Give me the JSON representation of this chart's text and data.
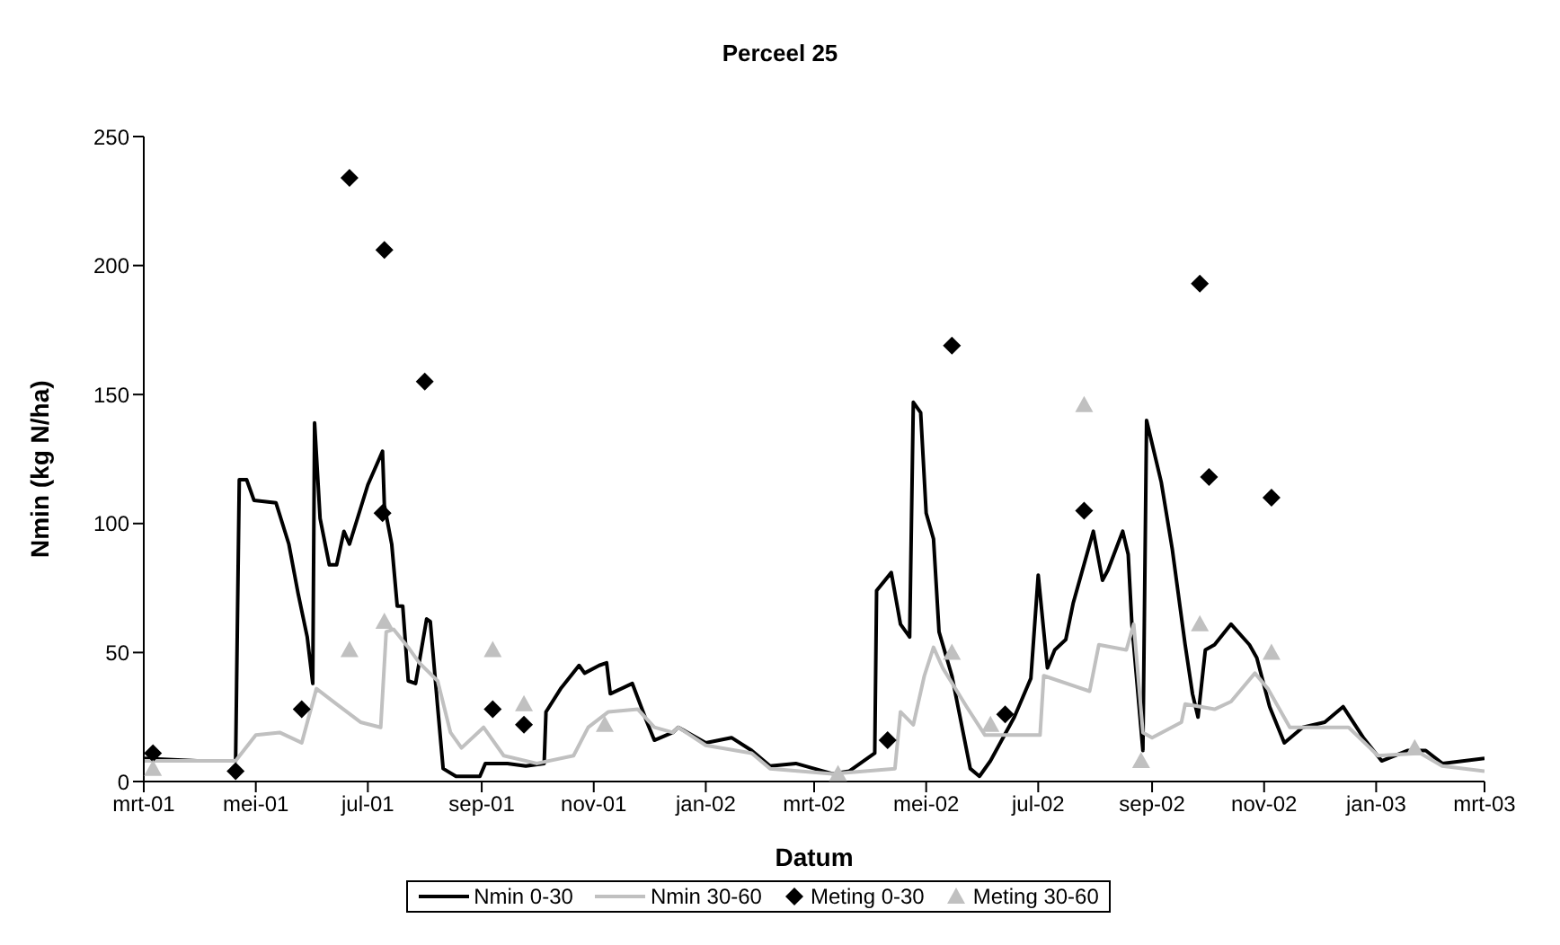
{
  "chart_data": {
    "type": "line",
    "title": "Perceel 25",
    "xlabel": "Datum",
    "ylabel": "Nmin (kg N/ha)",
    "xlim": [
      "2001-03-01",
      "2003-03-01"
    ],
    "xticks": [
      {
        "value": "2001-03-01",
        "label": "mrt-01"
      },
      {
        "value": "2001-05-01",
        "label": "mei-01"
      },
      {
        "value": "2001-07-01",
        "label": "jul-01"
      },
      {
        "value": "2001-09-01",
        "label": "sep-01"
      },
      {
        "value": "2001-11-01",
        "label": "nov-01"
      },
      {
        "value": "2002-01-01",
        "label": "jan-02"
      },
      {
        "value": "2002-03-01",
        "label": "mrt-02"
      },
      {
        "value": "2002-05-01",
        "label": "mei-02"
      },
      {
        "value": "2002-07-01",
        "label": "jul-02"
      },
      {
        "value": "2002-09-01",
        "label": "sep-02"
      },
      {
        "value": "2002-11-01",
        "label": "nov-02"
      },
      {
        "value": "2003-01-01",
        "label": "jan-03"
      },
      {
        "value": "2003-03-01",
        "label": "mrt-03"
      }
    ],
    "ylim": [
      0,
      250
    ],
    "yticks": [
      0,
      50,
      100,
      150,
      200,
      250
    ],
    "grid": false,
    "legend": "bottom",
    "series": [
      {
        "name": "Nmin 0-30",
        "color": "#000000",
        "marker": "none",
        "line_style": "solid",
        "x": [
          "2001-03-01",
          "2001-03-30",
          "2001-04-20",
          "2001-04-22",
          "2001-04-26",
          "2001-04-30",
          "2001-05-12",
          "2001-05-19",
          "2001-05-24",
          "2001-05-29",
          "2001-06-01",
          "2001-06-02",
          "2001-06-05",
          "2001-06-10",
          "2001-06-14",
          "2001-06-18",
          "2001-06-21",
          "2001-07-01",
          "2001-07-09",
          "2001-07-10",
          "2001-07-14",
          "2001-07-17",
          "2001-07-20",
          "2001-07-23",
          "2001-07-27",
          "2001-08-02",
          "2001-08-04",
          "2001-08-08",
          "2001-08-11",
          "2001-08-18",
          "2001-08-31",
          "2001-09-03",
          "2001-09-15",
          "2001-09-25",
          "2001-10-05",
          "2001-10-06",
          "2001-10-14",
          "2001-10-24",
          "2001-10-27",
          "2001-11-04",
          "2001-11-08",
          "2001-11-10",
          "2001-11-22",
          "2001-11-30",
          "2001-12-04",
          "2001-12-14",
          "2001-12-17",
          "2002-01-01",
          "2002-01-15",
          "2002-01-26",
          "2002-02-05",
          "2002-02-19",
          "2002-03-11",
          "2002-03-20",
          "2002-04-03",
          "2002-04-04",
          "2002-04-12",
          "2002-04-17",
          "2002-04-22",
          "2002-04-24",
          "2002-04-28",
          "2002-05-01",
          "2002-05-05",
          "2002-05-08",
          "2002-05-15",
          "2002-05-25",
          "2002-05-30",
          "2002-06-05",
          "2002-06-18",
          "2002-06-27",
          "2002-07-01",
          "2002-07-06",
          "2002-07-10",
          "2002-07-16",
          "2002-07-20",
          "2002-07-31",
          "2002-08-05",
          "2002-08-08",
          "2002-08-16",
          "2002-08-19",
          "2002-08-21",
          "2002-08-27",
          "2002-08-29",
          "2002-09-06",
          "2002-09-12",
          "2002-09-19",
          "2002-09-23",
          "2002-09-26",
          "2002-09-30",
          "2002-10-05",
          "2002-10-14",
          "2002-10-24",
          "2002-10-28",
          "2002-11-04",
          "2002-11-12",
          "2002-11-22",
          "2002-12-04",
          "2002-12-14",
          "2002-12-25",
          "2003-01-04",
          "2003-01-18",
          "2003-01-28",
          "2003-02-06",
          "2003-03-01"
        ],
        "values": [
          9,
          8,
          8,
          117,
          117,
          109,
          108,
          92,
          73,
          56,
          38,
          139,
          102,
          84,
          84,
          97,
          92,
          115,
          128,
          107,
          92,
          68,
          68,
          39,
          38,
          63,
          62,
          29,
          5,
          2,
          2,
          7,
          7,
          6,
          7,
          27,
          36,
          45,
          42,
          45,
          46,
          34,
          38,
          23,
          16,
          19,
          21,
          15,
          17,
          12,
          6,
          7,
          3,
          4,
          11,
          74,
          81,
          61,
          56,
          147,
          143,
          104,
          94,
          58,
          41,
          5,
          2,
          8,
          25,
          40,
          80,
          44,
          51,
          55,
          69,
          97,
          78,
          82,
          97,
          88,
          61,
          12,
          140,
          116,
          90,
          53,
          34,
          25,
          51,
          53,
          61,
          53,
          48,
          29,
          15,
          21,
          23,
          29,
          17,
          8,
          12,
          12,
          7,
          9
        ]
      },
      {
        "name": "Nmin 30-60",
        "color": "#c0c0c0",
        "marker": "none",
        "line_style": "solid",
        "x": [
          "2001-03-01",
          "2001-04-20",
          "2001-05-01",
          "2001-05-14",
          "2001-05-26",
          "2001-06-03",
          "2001-06-14",
          "2001-06-27",
          "2001-07-08",
          "2001-07-11",
          "2001-07-15",
          "2001-07-23",
          "2001-07-29",
          "2001-08-08",
          "2001-08-15",
          "2001-08-21",
          "2001-09-02",
          "2001-09-13",
          "2001-10-01",
          "2001-10-21",
          "2001-10-29",
          "2001-11-09",
          "2001-11-25",
          "2001-12-04",
          "2001-12-14",
          "2001-12-17",
          "2002-01-01",
          "2002-01-26",
          "2002-02-05",
          "2002-03-11",
          "2002-04-14",
          "2002-04-17",
          "2002-04-24",
          "2002-04-30",
          "2002-05-05",
          "2002-05-10",
          "2002-05-23",
          "2002-06-02",
          "2002-07-02",
          "2002-07-04",
          "2002-07-29",
          "2002-08-03",
          "2002-08-18",
          "2002-08-22",
          "2002-08-27",
          "2002-09-01",
          "2002-09-17",
          "2002-09-19",
          "2002-10-05",
          "2002-10-14",
          "2002-10-27",
          "2002-11-03",
          "2002-11-15",
          "2002-12-17",
          "2003-01-02",
          "2003-01-25",
          "2003-02-06",
          "2003-03-01"
        ],
        "values": [
          8,
          8,
          18,
          19,
          15,
          36,
          30,
          23,
          21,
          58,
          59,
          52,
          46,
          39,
          19,
          13,
          21,
          10,
          7,
          10,
          21,
          27,
          28,
          21,
          19,
          21,
          14,
          11,
          5,
          3,
          5,
          27,
          22,
          41,
          52,
          44,
          29,
          18,
          18,
          41,
          35,
          53,
          51,
          61,
          19,
          17,
          23,
          30,
          28,
          31,
          42,
          36,
          21,
          21,
          10,
          11,
          6,
          4
        ]
      },
      {
        "name": "Meting 0-30",
        "type": "scatter",
        "color": "#000000",
        "marker": "diamond",
        "x": [
          "2001-03-06",
          "2001-04-20",
          "2001-05-26",
          "2001-06-21",
          "2001-07-10",
          "2001-07-09",
          "2001-08-01",
          "2001-09-07",
          "2001-09-24",
          "2002-04-10",
          "2002-05-15",
          "2002-06-13",
          "2002-07-26",
          "2002-09-27",
          "2002-10-02",
          "2002-11-05"
        ],
        "values": [
          11,
          4,
          28,
          234,
          206,
          104,
          155,
          28,
          22,
          16,
          169,
          26,
          105,
          193,
          118,
          110
        ]
      },
      {
        "name": "Meting 30-60",
        "type": "scatter",
        "color": "#c0c0c0",
        "marker": "triangle",
        "x": [
          "2001-03-06",
          "2001-06-21",
          "2001-07-10",
          "2001-09-07",
          "2001-09-24",
          "2001-11-07",
          "2002-03-14",
          "2002-05-15",
          "2002-06-05",
          "2002-07-26",
          "2002-08-26",
          "2002-09-27",
          "2002-11-05",
          "2003-01-22"
        ],
        "values": [
          5,
          51,
          62,
          51,
          30,
          22,
          3,
          50,
          22,
          146,
          8,
          61,
          50,
          13
        ]
      }
    ]
  }
}
